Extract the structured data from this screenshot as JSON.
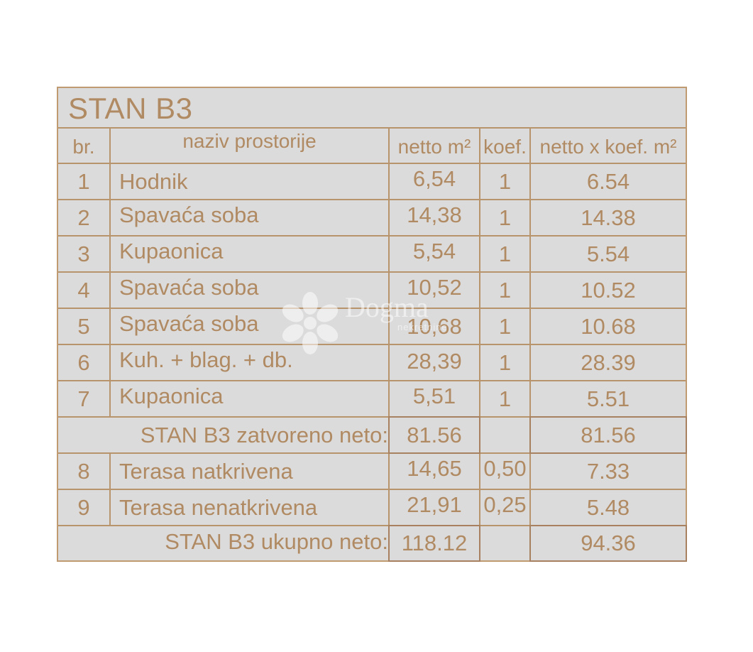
{
  "title": "STAN B3",
  "headers": {
    "num": "br.",
    "name": "naziv prostorije",
    "netto": "netto m²",
    "koef": "koef.",
    "product": "netto x koef. m²"
  },
  "rows": [
    {
      "num": "1",
      "name": "Hodnik",
      "netto": "6,54",
      "koef": "1",
      "product": "6.54"
    },
    {
      "num": "2",
      "name": "Spavaća soba",
      "netto": "14,38",
      "koef": "1",
      "product": "14.38"
    },
    {
      "num": "3",
      "name": "Kupaonica",
      "netto": "5,54",
      "koef": "1",
      "product": "5.54"
    },
    {
      "num": "4",
      "name": "Spavaća soba",
      "netto": "10,52",
      "koef": "1",
      "product": "10.52"
    },
    {
      "num": "5",
      "name": "Spavaća soba",
      "netto": "10,68",
      "koef": "1",
      "product": "10.68"
    },
    {
      "num": "6",
      "name": "Kuh. + blag. + db.",
      "netto": "28,39",
      "koef": "1",
      "product": "28.39"
    },
    {
      "num": "7",
      "name": "Kupaonica",
      "netto": "5,51",
      "koef": "1",
      "product": "5.51"
    }
  ],
  "subtotal": {
    "label": "STAN B3 zatvoreno neto:",
    "netto": "81.56",
    "product": "81.56"
  },
  "terraces": [
    {
      "num": "8",
      "name": "Terasa natkrivena",
      "netto": "14,65",
      "koef": "0,50",
      "product": "7.33"
    },
    {
      "num": "9",
      "name": "Terasa nenatkrivena",
      "netto": "21,91",
      "koef": "0,25",
      "product": "5.48"
    }
  ],
  "total": {
    "label": "STAN B3 ukupno neto:",
    "netto": "118.12",
    "product": "94.36"
  },
  "watermark": {
    "brand": "Dogma",
    "sub": "nekretnine"
  },
  "colors": {
    "text": "#b08a62",
    "grid": "#b8946c",
    "background": "#dcdbdb"
  }
}
